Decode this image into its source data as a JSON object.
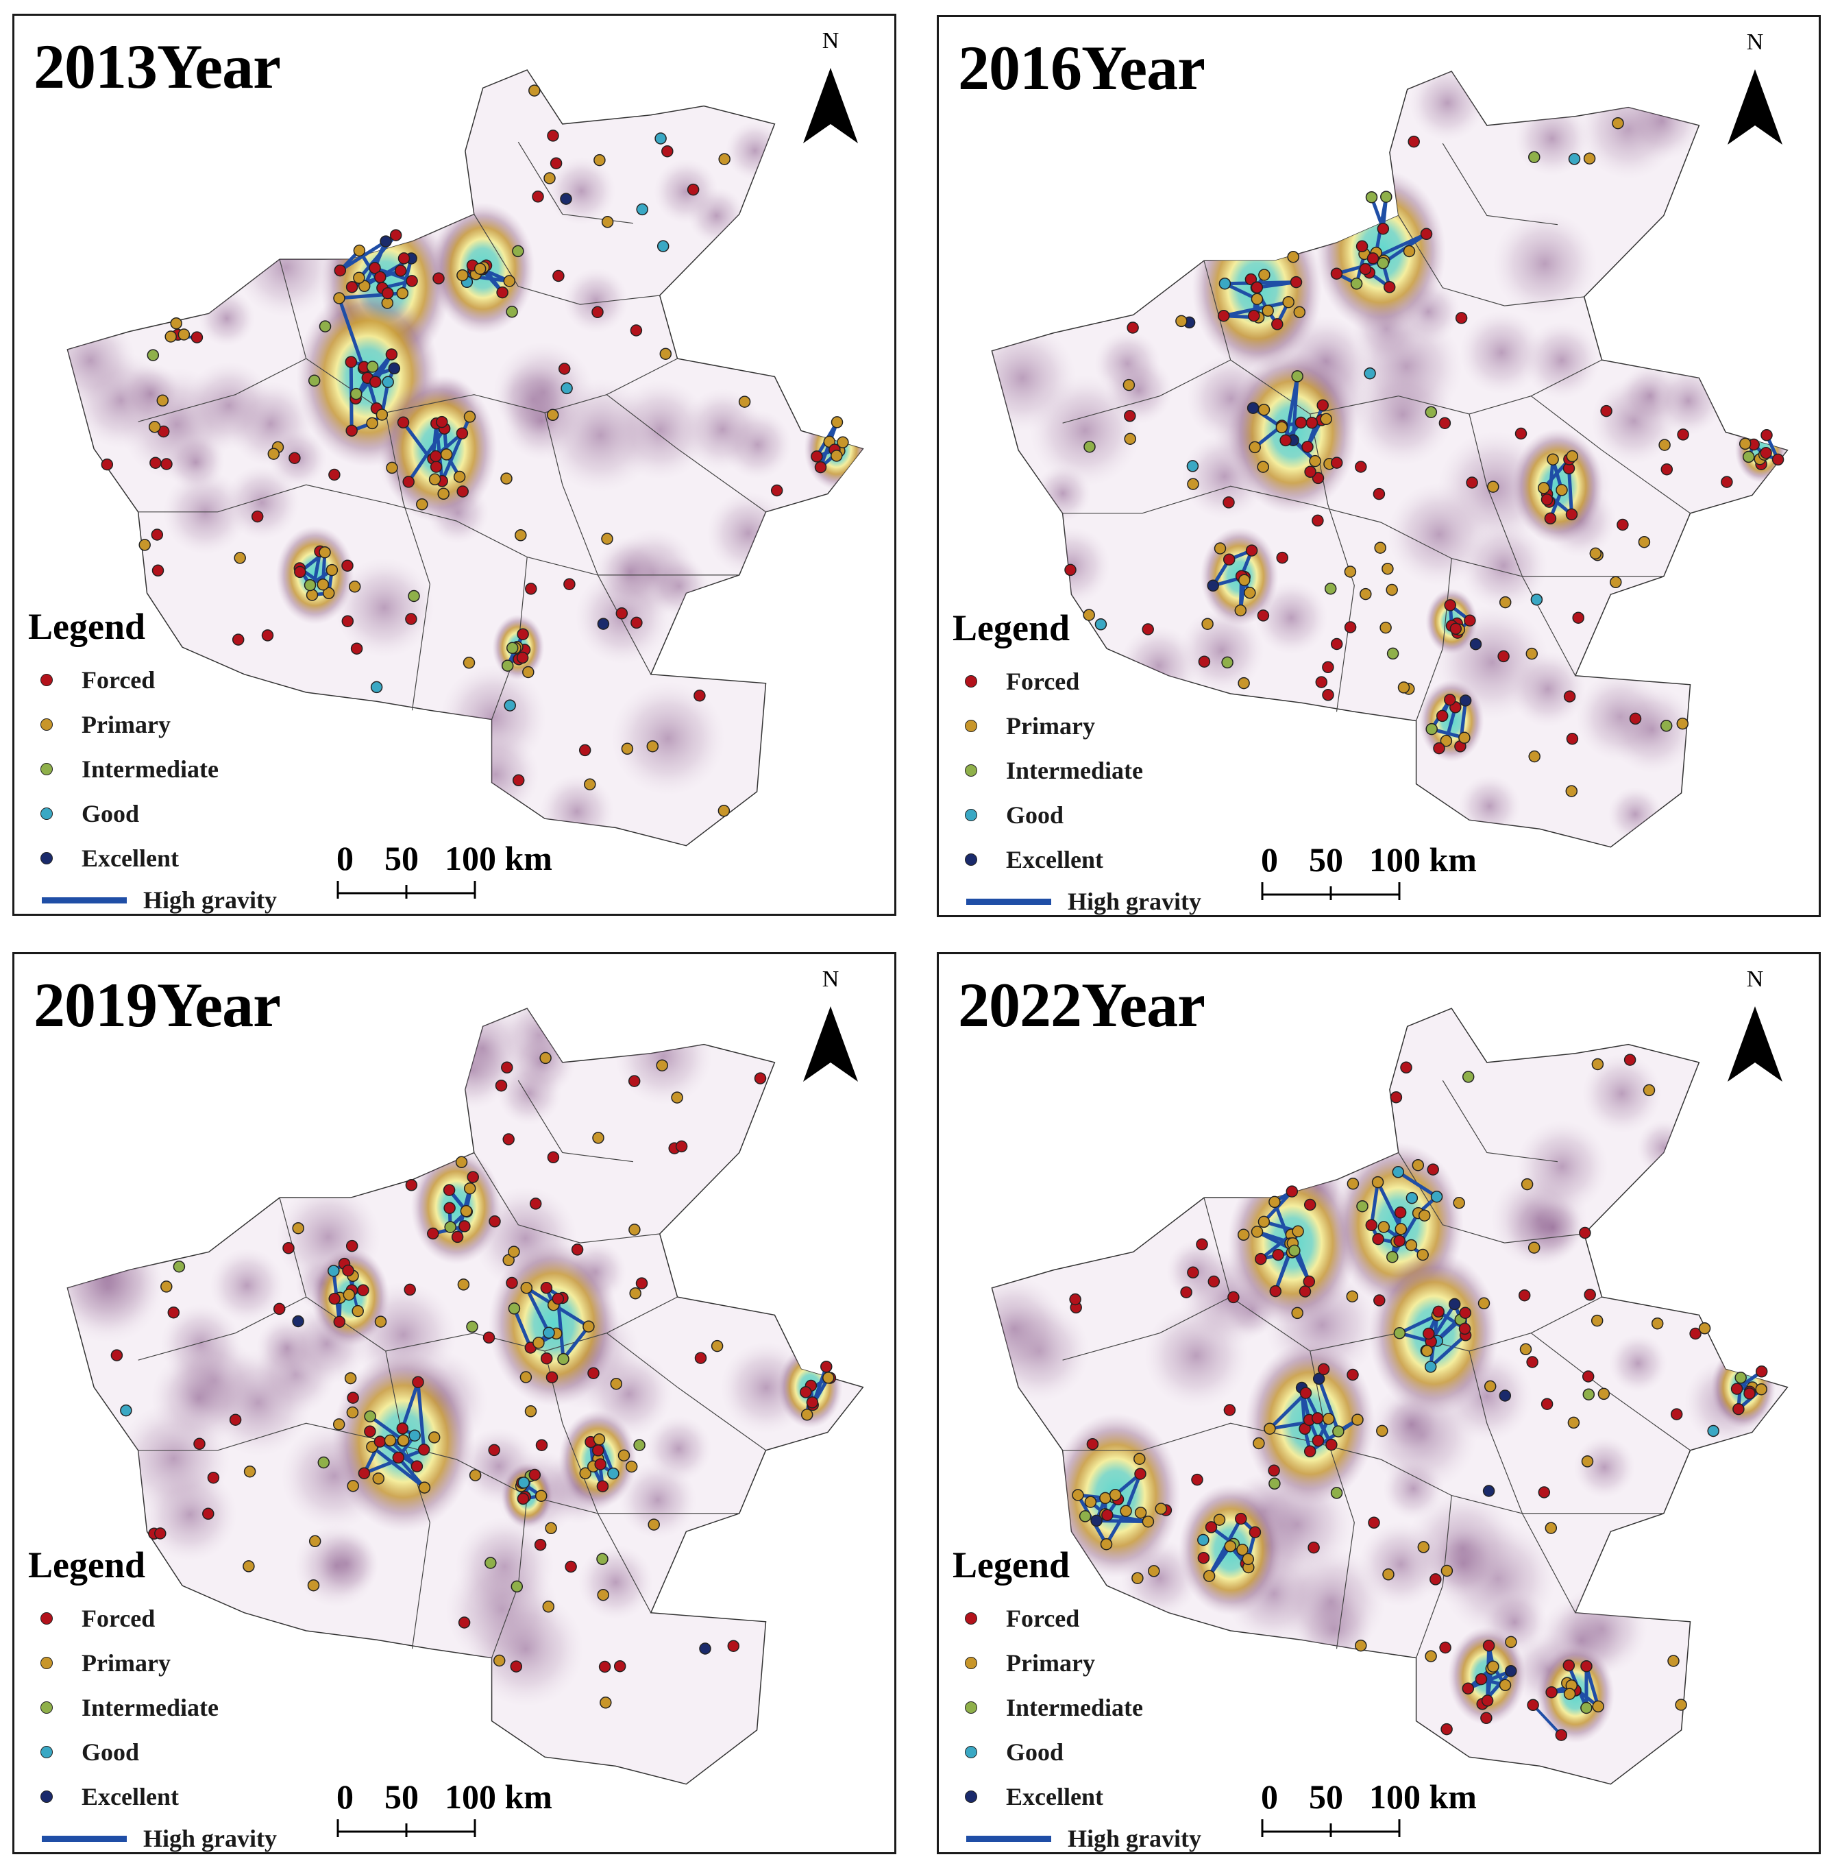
{
  "panels": [
    {
      "title": "2013Year",
      "hot": [
        [
          0.42,
          0.3,
          1
        ],
        [
          0.4,
          0.4,
          1.1
        ],
        [
          0.53,
          0.28,
          0.8
        ],
        [
          0.48,
          0.48,
          0.9
        ],
        [
          0.34,
          0.62,
          0.6
        ],
        [
          0.93,
          0.48,
          0.5
        ],
        [
          0.57,
          0.7,
          0.4
        ]
      ]
    },
    {
      "title": "2016Year",
      "hot": [
        [
          0.36,
          0.3,
          1
        ],
        [
          0.5,
          0.26,
          1
        ],
        [
          0.4,
          0.46,
          1
        ],
        [
          0.7,
          0.52,
          0.7
        ],
        [
          0.34,
          0.62,
          0.6
        ],
        [
          0.58,
          0.67,
          0.4
        ],
        [
          0.58,
          0.78,
          0.5
        ],
        [
          0.93,
          0.48,
          0.4
        ]
      ]
    },
    {
      "title": "2019Year",
      "hot": [
        [
          0.38,
          0.38,
          0.6
        ],
        [
          0.5,
          0.28,
          0.7
        ],
        [
          0.61,
          0.41,
          1
        ],
        [
          0.44,
          0.54,
          1.1
        ],
        [
          0.66,
          0.56,
          0.6
        ],
        [
          0.9,
          0.48,
          0.5
        ],
        [
          0.58,
          0.6,
          0.4
        ]
      ]
    },
    {
      "title": "2022Year",
      "hot": [
        [
          0.4,
          0.32,
          1
        ],
        [
          0.52,
          0.3,
          1
        ],
        [
          0.56,
          0.42,
          1
        ],
        [
          0.42,
          0.52,
          1
        ],
        [
          0.2,
          0.6,
          1
        ],
        [
          0.33,
          0.66,
          0.8
        ],
        [
          0.62,
          0.8,
          0.6
        ],
        [
          0.72,
          0.82,
          0.6
        ],
        [
          0.91,
          0.48,
          0.5
        ]
      ]
    }
  ],
  "north_label": "N",
  "legend": {
    "title": "Legend",
    "items": [
      {
        "label": "Forced",
        "color": "#b3121b"
      },
      {
        "label": "Primary",
        "color": "#c8962a"
      },
      {
        "label": "Intermediate",
        "color": "#8fb04a"
      },
      {
        "label": "Good",
        "color": "#3aa8c4"
      },
      {
        "label": "Excellent",
        "color": "#1a2a6b"
      }
    ],
    "line_label": "High gravity",
    "line_color": "#1f4ea6"
  },
  "scale": {
    "labels": [
      "0",
      "50",
      "100 km"
    ]
  }
}
